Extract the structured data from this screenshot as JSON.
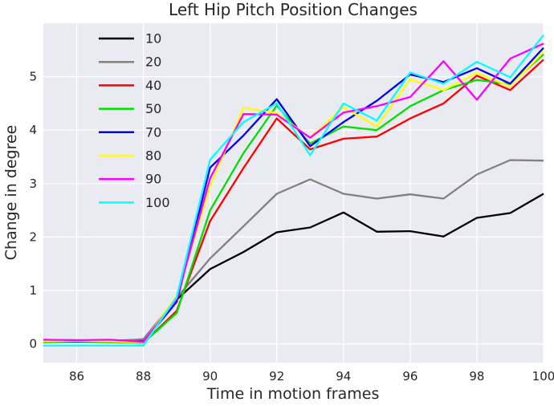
{
  "title": "Left Hip Pitch Position Changes",
  "xlabel": "Time in motion frames",
  "ylabel": "Change in degree",
  "colors": {
    "figure_background": "#ffffff",
    "plot_background": "#eaeaf2",
    "grid": "#ffffff",
    "text": "#262626"
  },
  "chart_data": {
    "type": "line",
    "title": "Left Hip Pitch Position Changes",
    "xlabel": "Time in motion frames",
    "ylabel": "Change in degree",
    "x": [
      85,
      86,
      87,
      88,
      89,
      90,
      91,
      92,
      93,
      94,
      95,
      96,
      97,
      98,
      99,
      100
    ],
    "xticks": [
      86,
      88,
      90,
      92,
      94,
      96,
      98,
      100
    ],
    "yticks": [
      0,
      1,
      2,
      3,
      4,
      5
    ],
    "xlim": [
      85,
      100
    ],
    "ylim": [
      -0.35,
      6.0
    ],
    "grid": true,
    "legend_position": "upper-left",
    "series": [
      {
        "name": "10",
        "color": "#000000",
        "values": [
          0.07,
          0.07,
          0.06,
          0.08,
          0.83,
          1.4,
          1.72,
          2.09,
          2.18,
          2.46,
          2.1,
          2.11,
          2.01,
          2.36,
          2.45,
          2.81
        ]
      },
      {
        "name": "20",
        "color": "#808080",
        "values": [
          0.05,
          0.06,
          0.05,
          0.09,
          0.86,
          1.6,
          2.2,
          2.81,
          3.08,
          2.81,
          2.72,
          2.8,
          2.72,
          3.17,
          3.44,
          3.43
        ]
      },
      {
        "name": "40",
        "color": "#ff0000",
        "values": [
          0.04,
          0.04,
          0.05,
          0.02,
          0.62,
          2.3,
          3.29,
          4.22,
          3.64,
          3.84,
          3.88,
          4.22,
          4.5,
          5.02,
          4.75,
          5.32
        ]
      },
      {
        "name": "50",
        "color": "#00e000",
        "values": [
          0.03,
          0.04,
          0.03,
          0.02,
          0.58,
          2.5,
          3.57,
          4.46,
          3.75,
          4.07,
          4.0,
          4.45,
          4.75,
          4.94,
          4.86,
          5.42
        ]
      },
      {
        "name": "70",
        "color": "#0000f0",
        "values": [
          0.06,
          0.05,
          0.06,
          0.03,
          0.79,
          3.3,
          3.9,
          4.58,
          3.7,
          4.15,
          4.55,
          5.04,
          4.9,
          5.16,
          4.87,
          5.54
        ]
      },
      {
        "name": "80",
        "color": "#ffff00",
        "values": [
          0.05,
          0.06,
          0.05,
          0.03,
          0.9,
          2.95,
          4.42,
          4.32,
          3.86,
          4.43,
          4.07,
          4.95,
          4.75,
          5.07,
          4.82,
          5.47
        ]
      },
      {
        "name": "90",
        "color": "#ff00ff",
        "values": [
          0.08,
          0.07,
          0.08,
          0.04,
          0.84,
          3.1,
          4.3,
          4.29,
          3.86,
          4.33,
          4.45,
          4.62,
          5.29,
          4.57,
          5.34,
          5.62
        ]
      },
      {
        "name": "100",
        "color": "#00ffff",
        "values": [
          -0.03,
          -0.03,
          -0.03,
          -0.03,
          0.88,
          3.45,
          4.15,
          4.5,
          3.53,
          4.5,
          4.18,
          5.08,
          4.87,
          5.28,
          4.99,
          5.78
        ]
      }
    ]
  }
}
